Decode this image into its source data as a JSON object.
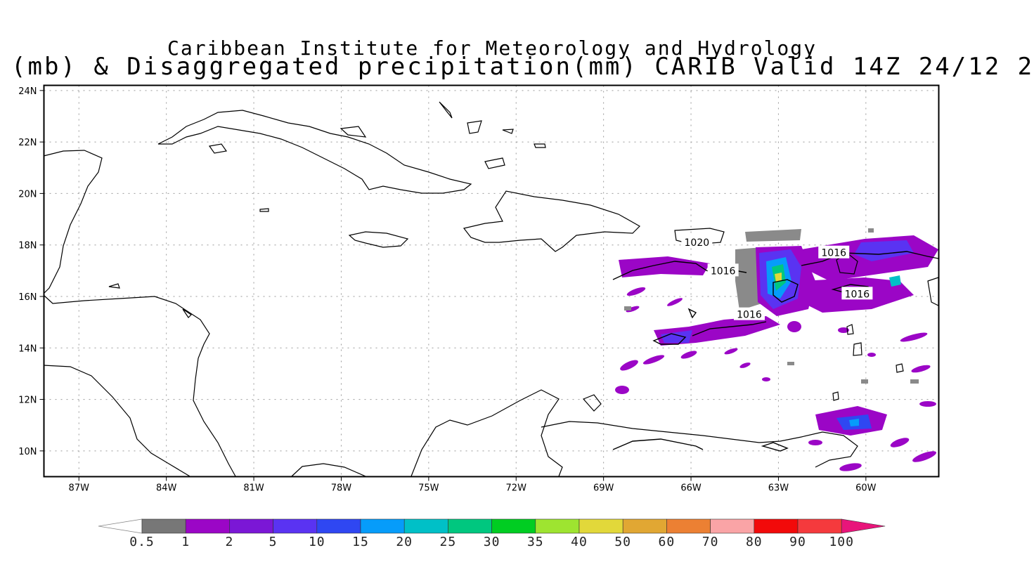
{
  "titles": {
    "line1": "Caribbean Institute for Meteorology and Hydrology",
    "line2": "(mb) & Disaggregated precipitation(mm) CARIB Valid 14Z 24/12 2"
  },
  "map": {
    "lon_range": [
      -88.2,
      -57.5
    ],
    "lat_range": [
      9,
      24.2
    ],
    "lat_ticks": [
      {
        "lat": 24,
        "label": "24N"
      },
      {
        "lat": 22,
        "label": "22N"
      },
      {
        "lat": 20,
        "label": "20N"
      },
      {
        "lat": 18,
        "label": "18N"
      },
      {
        "lat": 16,
        "label": "16N"
      },
      {
        "lat": 14,
        "label": "14N"
      },
      {
        "lat": 12,
        "label": "12N"
      },
      {
        "lat": 10,
        "label": "10N"
      }
    ],
    "lon_ticks": [
      {
        "lon": -87,
        "label": "87W"
      },
      {
        "lon": -84,
        "label": "84W"
      },
      {
        "lon": -81,
        "label": "81W"
      },
      {
        "lon": -78,
        "label": "78W"
      },
      {
        "lon": -75,
        "label": "75W"
      },
      {
        "lon": -72,
        "label": "72W"
      },
      {
        "lon": -69,
        "label": "69W"
      },
      {
        "lon": -66,
        "label": "66W"
      },
      {
        "lon": -63,
        "label": "63W"
      },
      {
        "lon": -60,
        "label": "60W"
      }
    ],
    "isobar_labels": [
      {
        "text": "1020",
        "lon": -65.8,
        "lat": 18.1
      },
      {
        "text": "1016",
        "lon": -64.9,
        "lat": 17.0
      },
      {
        "text": "1016",
        "lon": -61.1,
        "lat": 17.7
      },
      {
        "text": "1016",
        "lon": -60.3,
        "lat": 16.1
      },
      {
        "text": "1016",
        "lon": -64.0,
        "lat": 15.3
      }
    ]
  },
  "colorbar": {
    "colors": [
      "#777777",
      "#9b06c6",
      "#7b17d6",
      "#5a33f2",
      "#2f47f2",
      "#069cfa",
      "#00c0c7",
      "#00c77f",
      "#00cd22",
      "#9ee430",
      "#e2d83a",
      "#e1a733",
      "#ec8033",
      "#faa4a6",
      "#f20a0a",
      "#f53a3d"
    ],
    "labels": [
      "0.5",
      "1",
      "2",
      "5",
      "10",
      "15",
      "20",
      "25",
      "30",
      "35",
      "40",
      "50",
      "60",
      "70",
      "80",
      "90",
      "100"
    ],
    "under_color": "#ffffff",
    "over_color": "#e8157a"
  }
}
